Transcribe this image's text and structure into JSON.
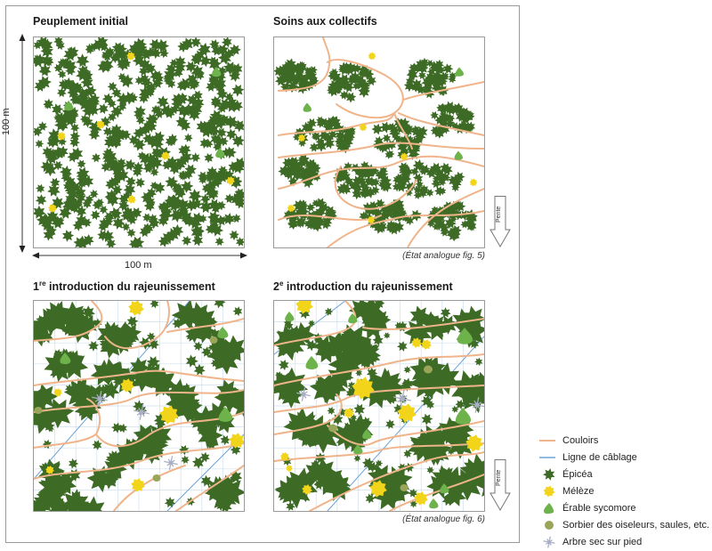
{
  "panels": [
    {
      "title_sup": "",
      "title": "Peuplement initial",
      "caption": ""
    },
    {
      "title_sup": "",
      "title": "Soins aux collectifs",
      "caption": "(État analogue fig. 5)"
    },
    {
      "title_prefix": "1",
      "title_sup": "re",
      "title": " introduction du rajeunissement",
      "caption": ""
    },
    {
      "title_prefix": "2",
      "title_sup": "e",
      "title": " introduction du rajeunissement",
      "caption": "(État analogue fig. 6)"
    }
  ],
  "dimensions": {
    "vertical": "100 m",
    "horizontal": "100 m"
  },
  "slope_label": "Pente",
  "legend": [
    {
      "label": "Couloirs",
      "icon": "corridor-line-icon",
      "color": "#f0b48a"
    },
    {
      "label": "Ligne de câblage",
      "icon": "cable-line-icon",
      "color": "#6aa3d8"
    },
    {
      "label": "Épicéa",
      "icon": "spruce-icon",
      "color": "#3d6b25"
    },
    {
      "label": "Mélèze",
      "icon": "larch-icon",
      "color": "#f2d51a"
    },
    {
      "label": "Érable sycomore",
      "icon": "maple-icon",
      "color": "#6db24a"
    },
    {
      "label": "Sorbier des oiseleurs, saules, etc.",
      "icon": "rowan-icon",
      "color": "#9aa55a"
    },
    {
      "label": "Arbre sec sur pied",
      "icon": "dead-tree-icon",
      "color": "#a9aec4"
    }
  ],
  "colors": {
    "spruce": "#3d6b25",
    "larch": "#f2d51a",
    "maple": "#6db24a",
    "rowan": "#9aa55a",
    "dead": "#a9aec4",
    "corridor": "#f0b48a",
    "cable": "#6aa3d8",
    "grid": "#cfe0ef",
    "border": "#9a9a9a"
  }
}
